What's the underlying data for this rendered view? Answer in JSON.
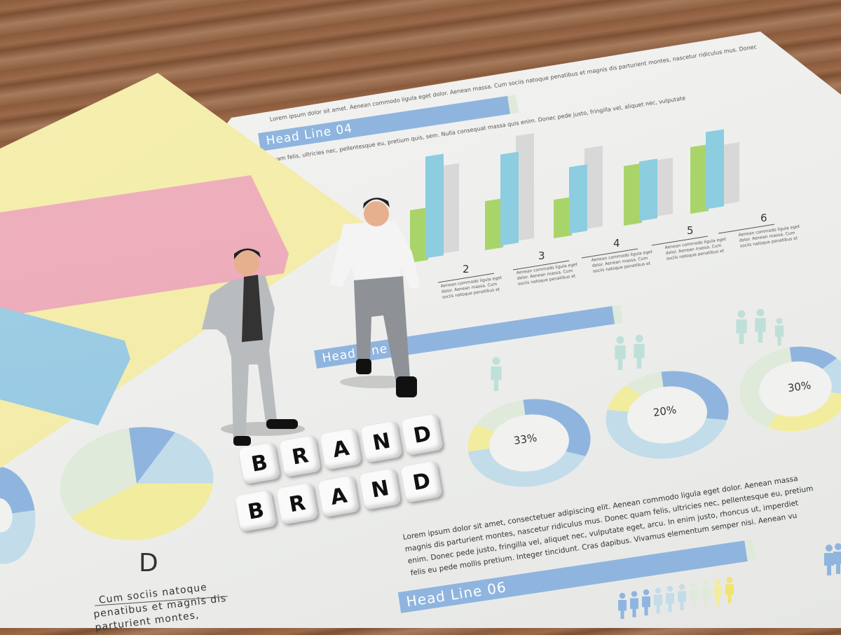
{
  "headlines": {
    "h04": "Head Line 04",
    "h05": "Head Line 05",
    "h06": "Head Line 06"
  },
  "top_text": [
    "Lorem ipsum dolor sit amet. Aenean commodo ligula eget dolor. Aenean massa. Cum sociis natoque penatibus et magnis dis parturient montes, nascetur ridiculus mus. Donec",
    "quam felis, ultricies nec, pellentesque eu, pretium quis, sem. Nulla consequat massa quis enim. Donec pede justo, fringilla vel, aliquet nec, vulputate"
  ],
  "bar_labels": [
    "2",
    "3",
    "4",
    "5",
    "6"
  ],
  "bar_caption": "Aenean commodo ligula eget dolor. Aenean massa. Cum sociis natoque penatibus et",
  "donuts": [
    "33%",
    "20%",
    "30%"
  ],
  "pie_label": "D",
  "pie_caption": [
    "Cum sociis natoque",
    "penatibus et magnis dis",
    "parturient montes,"
  ],
  "blocks": {
    "row1": [
      "B",
      "R",
      "A",
      "N",
      "D"
    ],
    "row2": [
      "B",
      "R",
      "A",
      "N",
      "D"
    ]
  },
  "lorem": [
    "Lorem ipsum dolor sit amet, consectetuer adipiscing elit. Aenean commodo ligula eget dolor. Aenean massa",
    "magnis dis parturient montes, nascetur ridiculus mus. Donec quam felis, ultricies nec, pellentesque eu, pretium",
    "enim. Donec pede justo, fringilla vel, aliquet nec, vulputate eget, arcu. In enim justo, rhoncus ut, imperdiet",
    "felis eu pede mollis pretium. Integer tincidunt. Cras dapibus. Vivamus elementum semper nisi. Aenean vu"
  ],
  "colors": {
    "blue": "#8fb5df",
    "green": "#a9d46a",
    "teal": "#8ccde0",
    "gray": "#d8d8d8",
    "yellow": "#f2ec9e",
    "lightblue": "#c3dcea"
  }
}
